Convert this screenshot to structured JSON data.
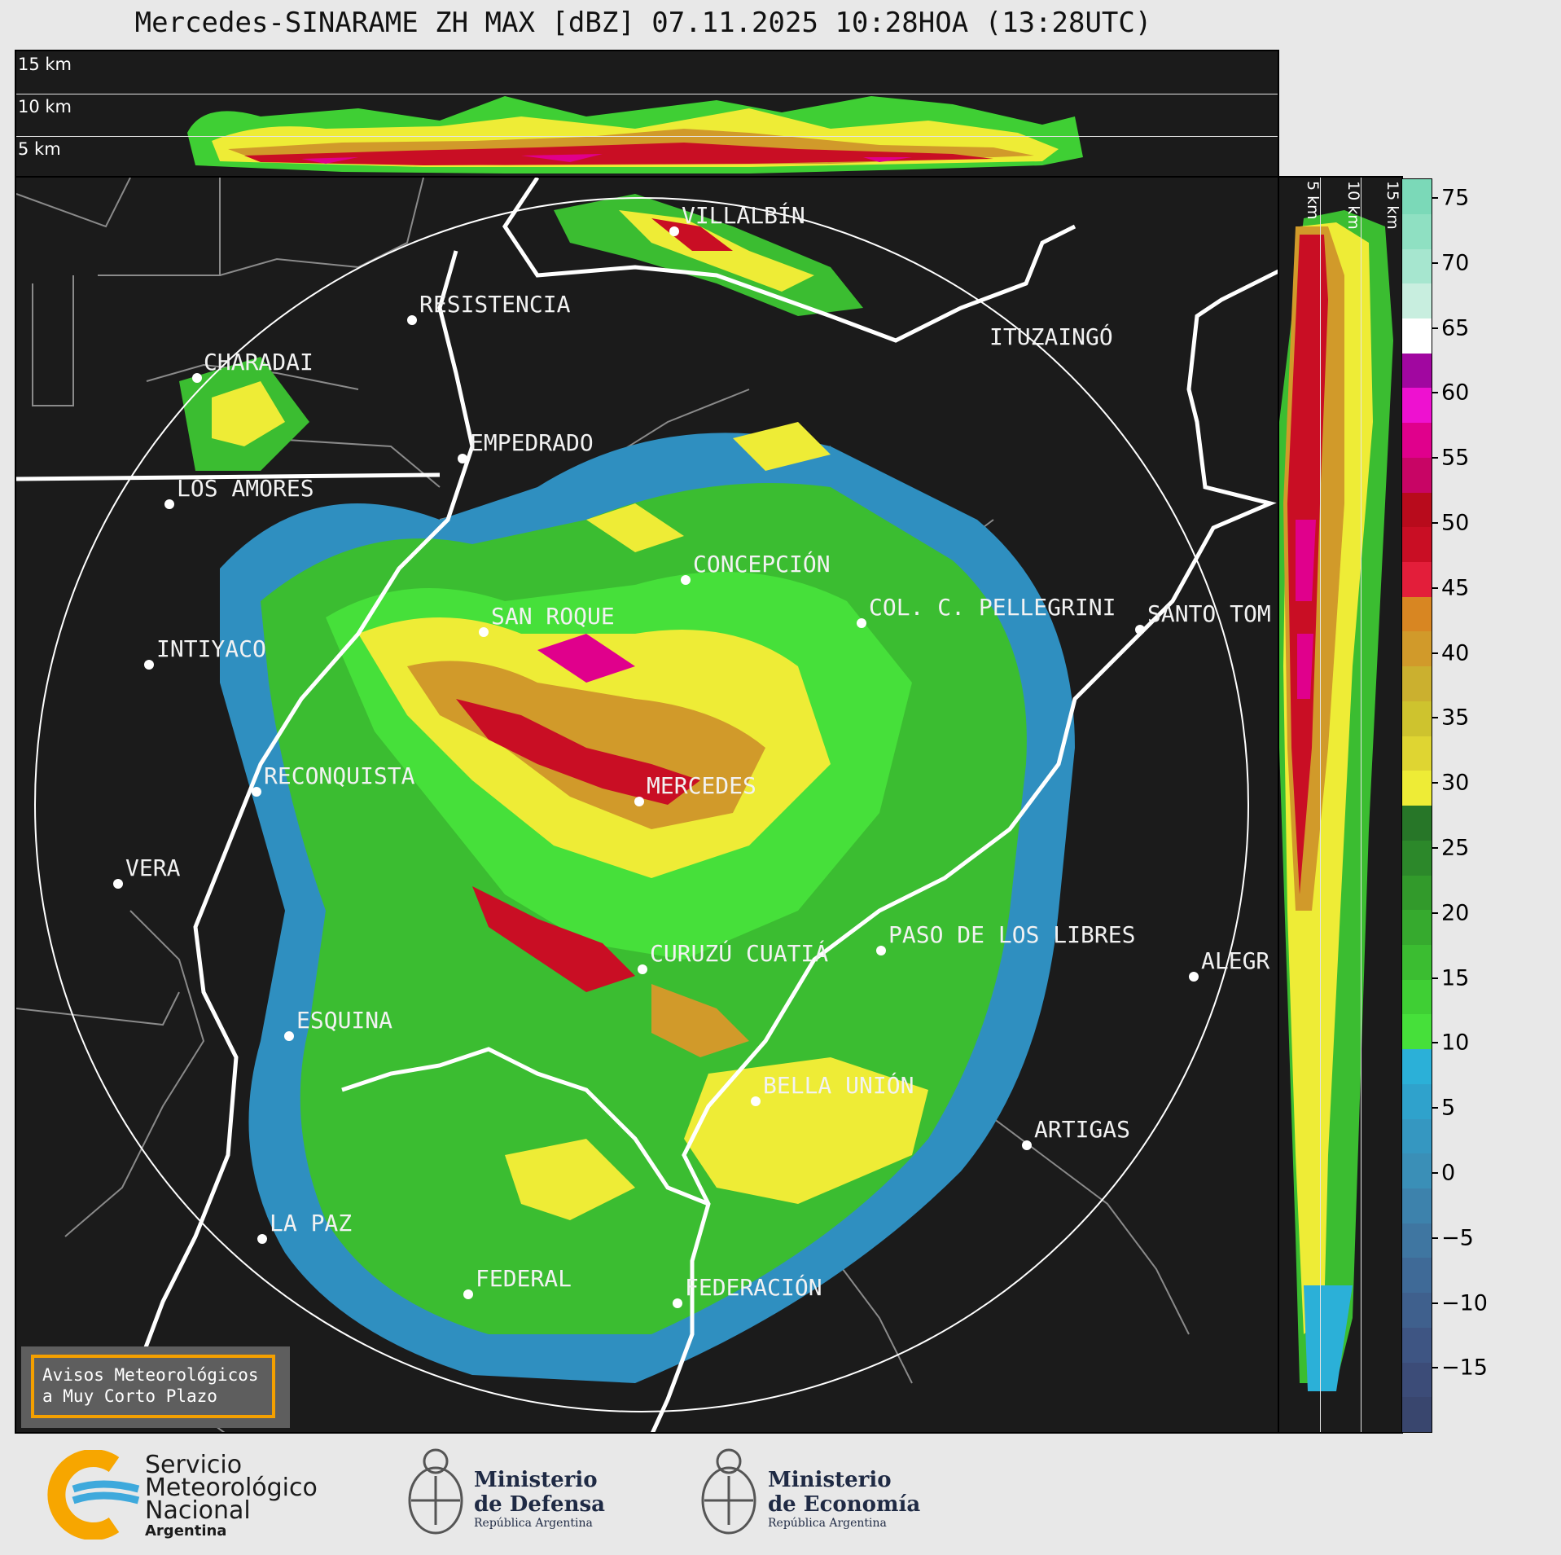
{
  "title": "Mercedes-SINARAME ZH MAX [dBZ] 07.11.2025 10:28HOA (13:28UTC)",
  "top_panel": {
    "levels": [
      "15 km",
      "10 km",
      "5 km"
    ]
  },
  "side_panel": {
    "levels": [
      "5 km",
      "10 km",
      "15 km"
    ]
  },
  "cities": [
    {
      "name": "VILLALBÍN"
    },
    {
      "name": "RESISTENCIA"
    },
    {
      "name": "ITUZAINGÓ"
    },
    {
      "name": "CHARADAI"
    },
    {
      "name": "EMPEDRADO"
    },
    {
      "name": "LOS AMORES"
    },
    {
      "name": "CONCEPCIÓN"
    },
    {
      "name": "COL. C. PELLEGRINI"
    },
    {
      "name": "SANTO TOM"
    },
    {
      "name": "SAN ROQUE"
    },
    {
      "name": "INTIYACO"
    },
    {
      "name": "RECONQUISTA"
    },
    {
      "name": "MERCEDES"
    },
    {
      "name": "VERA"
    },
    {
      "name": "PASO DE LOS LIBRES"
    },
    {
      "name": "CURUZÚ CUATIÁ"
    },
    {
      "name": "ALEGR"
    },
    {
      "name": "ESQUINA"
    },
    {
      "name": "BELLA UNIÓN"
    },
    {
      "name": "ARTIGAS"
    },
    {
      "name": "LA PAZ"
    },
    {
      "name": "FEDERAL"
    },
    {
      "name": "FEDERACIÓN"
    }
  ],
  "colorbar": {
    "ticks": [
      "75",
      "70",
      "65",
      "60",
      "55",
      "50",
      "45",
      "40",
      "35",
      "30",
      "25",
      "20",
      "15",
      "10",
      "5",
      "0",
      "−5",
      "−10",
      "−15"
    ],
    "colors": [
      "#39466e",
      "#3c4c78",
      "#3e5583",
      "#3f608d",
      "#3f6a97",
      "#3f76a1",
      "#3d82ac",
      "#3a8fb7",
      "#3597c1",
      "#2fa2cc",
      "#2bb0d8",
      "#46e03a",
      "#3fcf34",
      "#3bbd31",
      "#36aa2e",
      "#329a2b",
      "#2c882a",
      "#277628",
      "#eeec36",
      "#dfd532",
      "#cec32e",
      "#cbb02f",
      "#d19a2a",
      "#d88622",
      "#e31e3a",
      "#c90e24",
      "#b80b1c",
      "#c80565",
      "#e0008c",
      "#ee11d0",
      "#a107a0",
      "#ffffff",
      "#c8eedf",
      "#a6e6cf",
      "#8fe0c2",
      "#7bd9b8"
    ]
  },
  "footer": {
    "avisos": [
      "Avisos Meteorológicos",
      "a Muy Corto Plazo"
    ],
    "smn": [
      "Servicio",
      "Meteorológico",
      "Nacional",
      "Argentina"
    ],
    "defensa": [
      "Ministerio",
      "de Defensa",
      "República Argentina"
    ],
    "economia": [
      "Ministerio",
      "de Economía",
      "República Argentina"
    ]
  }
}
